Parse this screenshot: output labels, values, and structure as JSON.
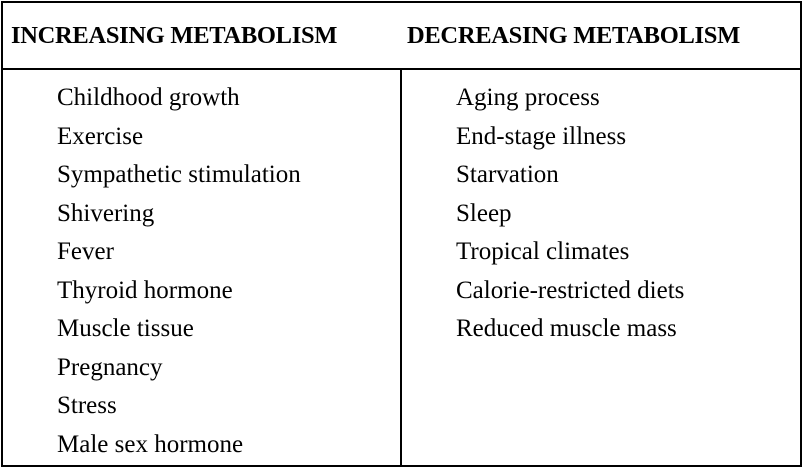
{
  "table": {
    "headers": {
      "increasing": "INCREASING METABOLISM",
      "decreasing": "DECREASING METABOLISM"
    },
    "increasing_items": [
      "Childhood growth",
      "Exercise",
      "Sympathetic stimulation",
      "Shivering",
      "Fever",
      "Thyroid hormone",
      "Muscle tissue",
      "Pregnancy",
      "Stress",
      "Male sex hormone"
    ],
    "decreasing_items": [
      "Aging process",
      "End-stage illness",
      "Starvation",
      "Sleep",
      "Tropical climates",
      "Calorie-restricted diets",
      "Reduced muscle mass"
    ]
  }
}
